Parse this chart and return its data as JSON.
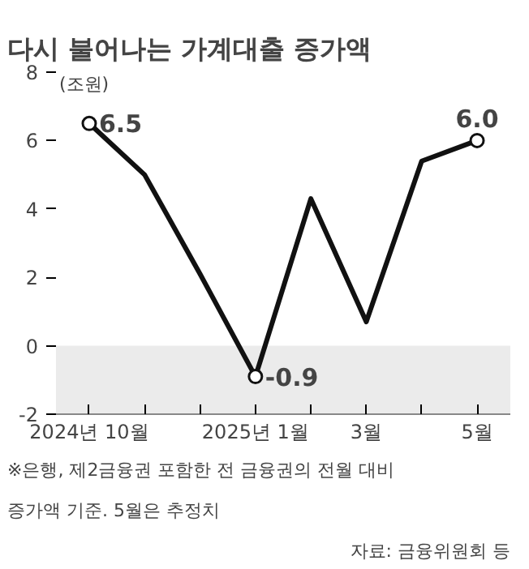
{
  "chart_data": {
    "type": "line",
    "title": "다시 불어나는 가계대출 증가액",
    "ylabel": "(조원)",
    "categories": [
      "2024년 10월",
      null,
      null,
      "2025년 1월",
      null,
      "3월",
      null,
      "5월"
    ],
    "series": [
      {
        "color": "#111111",
        "values": [
          6.5,
          5.0,
          2.1,
          -0.9,
          4.3,
          0.7,
          5.4,
          6.0
        ],
        "value_labels": [
          "6.5",
          null,
          null,
          "-0.9",
          null,
          null,
          null,
          "6.0"
        ]
      }
    ],
    "ylim": [
      -2,
      8
    ],
    "yticks": [
      -2,
      0,
      2,
      4,
      6,
      8
    ],
    "grid": false,
    "line_style": "solid",
    "bands": [
      {
        "axis": "y",
        "from": -2,
        "to": 0,
        "color": "#ebebeb"
      }
    ],
    "annotations": [
      "※은행, 제2금융권 포함한 전 금융권의 전월 대비 증가액 기준. 5월은 추정치",
      "자료: 금융위원회 등"
    ]
  }
}
